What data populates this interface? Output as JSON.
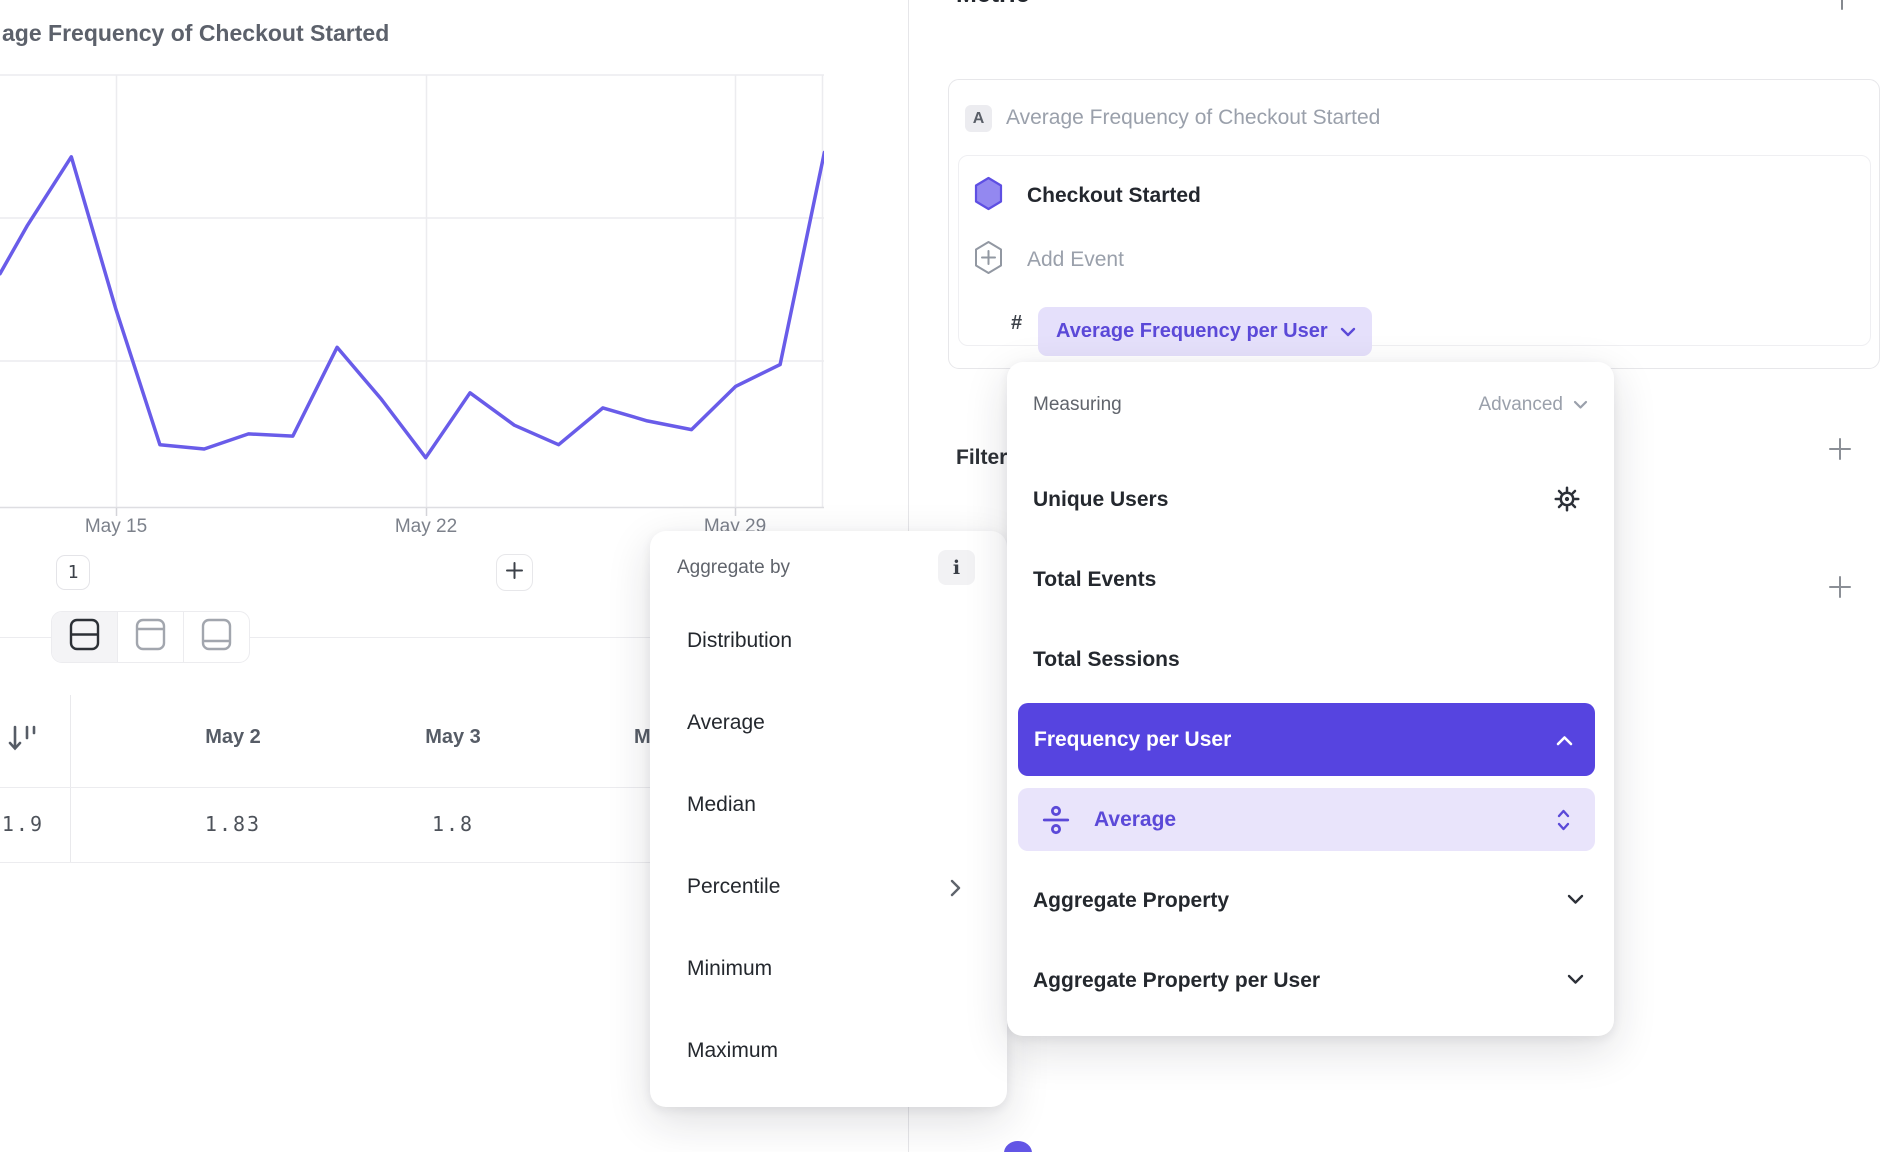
{
  "left_chart": {
    "title": "age Frequency of Checkout Started",
    "x_ticks": [
      "May 15",
      "May 22",
      "May 29"
    ],
    "count_chip": "1"
  },
  "chart_data": {
    "type": "line",
    "title": "Average Frequency of Checkout Started",
    "x": [
      "May 13",
      "May 14",
      "May 15",
      "May 16",
      "May 17",
      "May 18",
      "May 19",
      "May 20",
      "May 21",
      "May 22",
      "May 23",
      "May 24",
      "May 25",
      "May 26",
      "May 27",
      "May 28",
      "May 29",
      "May 30",
      "May 31"
    ],
    "values_pct_of_plot_height": [
      65,
      81,
      46,
      14.5,
      13.5,
      17,
      16.5,
      37,
      25,
      11.5,
      26.5,
      19,
      14.5,
      23,
      20,
      18,
      28,
      33,
      82
    ],
    "left_edge_entry_pct": 54,
    "x_gridlines": [
      "May 15",
      "May 22",
      "May 29"
    ],
    "y_axis_labels": "not visible (cropped at left edge)",
    "legend": "none",
    "line_color": "#695ce9"
  },
  "layout_toggle": {
    "modes": [
      "split-rows-view",
      "header-top-view",
      "footer-bottom-view"
    ],
    "active_index": 0
  },
  "table": {
    "first_value_clipped": "1.9",
    "columns": [
      {
        "header": "May 2",
        "value": "1.83"
      },
      {
        "header": "May 3",
        "value": "1.8"
      },
      {
        "header": "M",
        "value": ""
      }
    ]
  },
  "right_panel": {
    "heading_clipped": "Metric",
    "metric_card": {
      "badge": "A",
      "name_placeholder": "Average Frequency of Checkout Started",
      "event_name": "Checkout Started",
      "add_event_label": "Add Event",
      "hash": "#",
      "measure_chip_label": "Average Frequency per User"
    },
    "filters_label": "Filters"
  },
  "aggregate_popup": {
    "label": "Aggregate by",
    "info_glyph": "i",
    "items": [
      {
        "label": "Distribution"
      },
      {
        "label": "Average"
      },
      {
        "label": "Median"
      },
      {
        "label": "Percentile",
        "has_submenu": true
      },
      {
        "label": "Minimum"
      },
      {
        "label": "Maximum"
      }
    ]
  },
  "measuring_popup": {
    "label": "Measuring",
    "advanced_label": "Advanced",
    "items": [
      "Unique Users",
      "Total Events",
      "Total Sessions"
    ],
    "selected_item": "Frequency per User",
    "selected_sub_item": "Average",
    "more_items": [
      "Aggregate Property",
      "Aggregate Property per User"
    ]
  },
  "colors": {
    "accent_purple": "#5644e0",
    "light_purple": "#e9e4fb",
    "line_purple": "#695ce9"
  }
}
